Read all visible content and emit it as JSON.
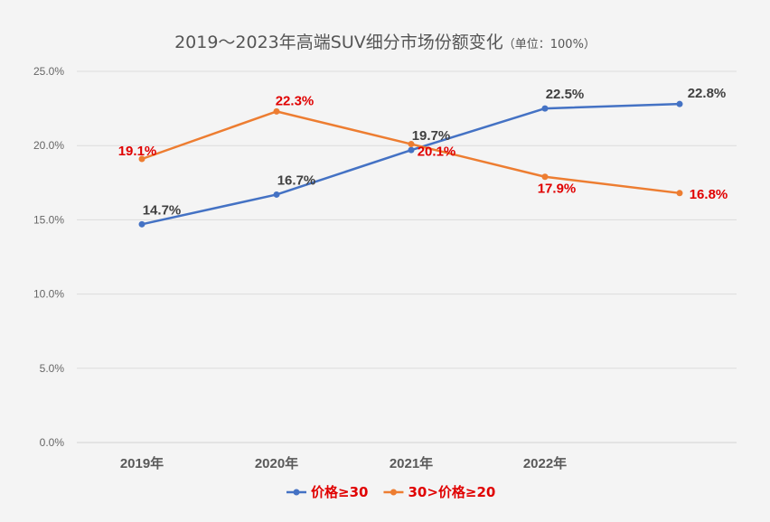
{
  "chart_data": {
    "type": "line",
    "title": "2019～2023年高端SUV细分市场份额变化",
    "title_unit": "（单位：100%）",
    "categories": [
      "2019年",
      "2020年",
      "2021年",
      "2022年",
      ""
    ],
    "ylim": [
      0,
      25
    ],
    "yticks": [
      0,
      5,
      10,
      15,
      20,
      25
    ],
    "ytick_labels": [
      "0.0%",
      "5.0%",
      "10.0%",
      "15.0%",
      "20.0%",
      "25.0%"
    ],
    "grid": "horizontal",
    "legend_position": "bottom",
    "series": [
      {
        "name": "价格≥30",
        "color": "#4472c4",
        "label_color": "#404040",
        "values": [
          14.7,
          16.7,
          19.7,
          22.5,
          22.8
        ],
        "labels": [
          "14.7%",
          "16.7%",
          "19.7%",
          "22.5%",
          "22.8%"
        ]
      },
      {
        "name": "30>价格≥20",
        "color": "#ed7d31",
        "label_color": "#e00000",
        "values": [
          19.1,
          22.3,
          20.1,
          17.9,
          16.8
        ],
        "labels": [
          "19.1%",
          "22.3%",
          "20.1%",
          "17.9%",
          "16.8%"
        ]
      }
    ]
  }
}
